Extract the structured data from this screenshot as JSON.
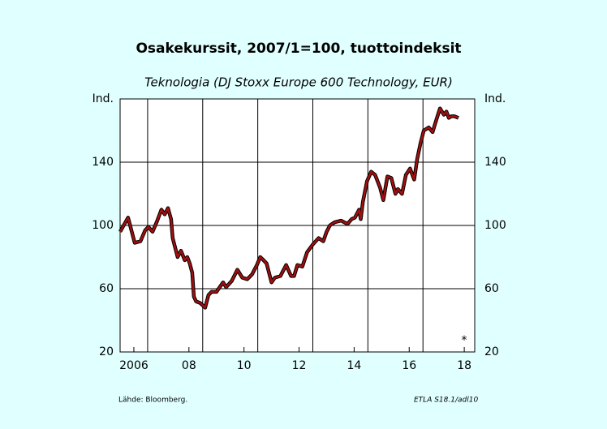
{
  "chart_data": {
    "type": "line",
    "title": "Osakekurssit, 2007/1=100, tuottoindeksit",
    "subtitle": "Teknologia (DJ Stoxx Europe 600 Technology, EUR)",
    "source": "Lähde:  Bloomberg.",
    "code": "ETLA S18.1/adl10",
    "annotation": "*",
    "xlim": [
      2006,
      2018.88
    ],
    "ylim": [
      20,
      180
    ],
    "yticks": [
      20,
      60,
      100,
      140,
      {
        "value": 180,
        "label": "Ind."
      }
    ],
    "xticks": [
      {
        "value": 2006.5,
        "label": "2006"
      },
      {
        "value": 2008.5,
        "label": "08"
      },
      {
        "value": 2010.5,
        "label": "10"
      },
      {
        "value": 2012.5,
        "label": "12"
      },
      {
        "value": 2014.5,
        "label": "14"
      },
      {
        "value": 2016.5,
        "label": "16"
      },
      {
        "value": 2018.5,
        "label": "18"
      }
    ],
    "xgrid": [
      2007,
      2009,
      2011,
      2013,
      2015,
      2017
    ],
    "grid": true,
    "series": [
      {
        "color": "#a01010",
        "x": [
          2006.0,
          2006.29,
          2006.53,
          2006.74,
          2006.91,
          2007.03,
          2007.18,
          2007.35,
          2007.5,
          2007.62,
          2007.74,
          2007.85,
          2007.91,
          2008.09,
          2008.21,
          2008.35,
          2008.44,
          2008.53,
          2008.62,
          2008.68,
          2008.76,
          2008.91,
          2009.09,
          2009.21,
          2009.32,
          2009.5,
          2009.74,
          2009.85,
          2010.06,
          2010.26,
          2010.44,
          2010.62,
          2010.79,
          2010.97,
          2011.09,
          2011.21,
          2011.32,
          2011.5,
          2011.62,
          2011.82,
          2012.03,
          2012.21,
          2012.32,
          2012.44,
          2012.62,
          2012.79,
          2013.0,
          2013.21,
          2013.38,
          2013.5,
          2013.62,
          2013.79,
          2014.03,
          2014.26,
          2014.41,
          2014.53,
          2014.68,
          2014.74,
          2014.82,
          2014.97,
          2015.12,
          2015.26,
          2015.44,
          2015.56,
          2015.71,
          2015.85,
          2016.0,
          2016.09,
          2016.24,
          2016.38,
          2016.53,
          2016.68,
          2016.79,
          2016.91,
          2017.03,
          2017.21,
          2017.35,
          2017.47,
          2017.62,
          2017.76,
          2017.85,
          2017.94,
          2018.03,
          2018.15,
          2018.29
        ],
        "values": [
          96,
          105,
          89,
          90,
          97,
          99,
          96,
          103,
          110,
          107,
          111,
          104,
          92,
          80,
          84,
          78,
          80,
          76,
          70,
          55,
          52,
          51,
          48,
          56,
          58,
          58,
          64,
          61,
          65,
          72,
          67,
          66,
          69,
          75,
          80,
          78,
          76,
          64,
          67,
          68,
          75,
          68,
          68,
          75,
          74,
          83,
          88,
          92,
          90,
          96,
          100,
          102,
          103,
          101,
          104,
          105,
          110,
          104,
          115,
          128,
          134,
          132,
          124,
          116,
          131,
          130,
          120,
          123,
          120,
          132,
          136,
          129,
          142,
          152,
          160,
          162,
          159,
          166,
          174,
          170,
          172,
          168,
          169,
          169,
          168
        ]
      }
    ]
  }
}
